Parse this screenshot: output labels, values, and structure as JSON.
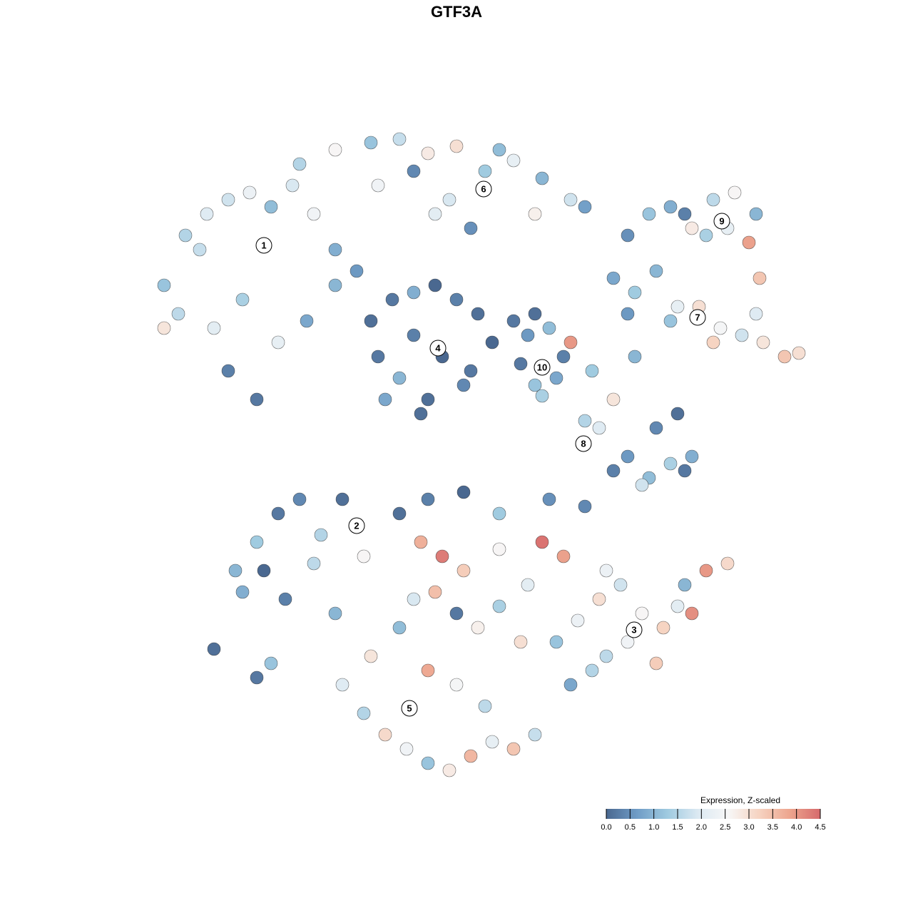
{
  "chart_data": {
    "type": "scatter",
    "title": "GTF3A",
    "xlim": [
      200,
      1130
    ],
    "ylim": [
      1095,
      180
    ],
    "colorbar": {
      "title": "Expression, Z-scaled",
      "clim": [
        0,
        4.5
      ],
      "ticks": [
        {
          "value": 0,
          "label": "0.0"
        },
        0.5,
        {
          "value": 1,
          "label": "1.0"
        },
        1.5,
        {
          "value": 2,
          "label": "2.0"
        },
        2.5,
        {
          "value": 3,
          "label": "3.0"
        },
        3.5,
        {
          "value": 4,
          "label": "4.0"
        },
        4.5
      ],
      "colors": [
        "#4a6890",
        "#6f9cc6",
        "#9fcae0",
        "#dce9f2",
        "#f7f7f7",
        "#f6d3c1",
        "#eda58e",
        "#d66a6c"
      ]
    },
    "series": [
      {
        "name": "1",
        "label_x": 370,
        "label_y": 344,
        "x": [
          230,
          260,
          290,
          320,
          350,
          380,
          410,
          440,
          470,
          500,
          250,
          300,
          340,
          390,
          430,
          470,
          320,
          360,
          280,
          230
        ],
        "y": [
          400,
          330,
          300,
          280,
          270,
          290,
          260,
          300,
          350,
          380,
          440,
          460,
          420,
          480,
          450,
          400,
          520,
          560,
          350,
          460
        ],
        "values": [
          1.2,
          1.5,
          2.0,
          1.8,
          2.3,
          1.1,
          1.9,
          2.4,
          0.9,
          0.6,
          1.6,
          2.1,
          1.4,
          2.2,
          0.8,
          1.0,
          0.3,
          0.2,
          1.7,
          2.9
        ]
      },
      {
        "name": "6",
        "label_x": 678,
        "label_y": 265,
        "x": [
          420,
          470,
          520,
          560,
          600,
          640,
          680,
          720,
          760,
          800,
          530,
          580,
          630,
          700,
          750,
          820,
          660,
          610
        ],
        "y": [
          230,
          210,
          200,
          195,
          215,
          205,
          240,
          225,
          250,
          280,
          260,
          240,
          280,
          210,
          300,
          290,
          320,
          300
        ],
        "values": [
          1.5,
          2.6,
          1.2,
          1.7,
          2.8,
          3.0,
          1.3,
          2.2,
          1.0,
          1.8,
          2.4,
          0.4,
          1.9,
          1.1,
          2.7,
          0.7,
          0.5,
          2.1
        ]
      },
      {
        "name": "4",
        "label_x": 614,
        "label_y": 488,
        "x": [
          520,
          550,
          580,
          610,
          640,
          670,
          530,
          560,
          600,
          650,
          690,
          720,
          750,
          540,
          580,
          620,
          660,
          590
        ],
        "y": [
          450,
          420,
          410,
          400,
          420,
          440,
          500,
          530,
          560,
          540,
          480,
          450,
          440,
          560,
          470,
          500,
          520,
          580
        ],
        "values": [
          0.1,
          0.2,
          0.9,
          0.0,
          0.3,
          0.1,
          0.2,
          1.0,
          0.1,
          0.4,
          0.0,
          0.2,
          0.1,
          0.8,
          0.3,
          0.0,
          0.2,
          0.1
        ]
      },
      {
        "name": "9",
        "label_x": 1012,
        "label_y": 310,
        "x": [
          880,
          910,
          940,
          970,
          1000,
          1030,
          1060,
          1050,
          990,
          960,
          1020,
          1065
        ],
        "y": [
          330,
          300,
          290,
          320,
          280,
          270,
          300,
          340,
          330,
          300,
          320,
          390
        ],
        "values": [
          0.5,
          1.2,
          0.9,
          2.8,
          1.6,
          2.6,
          1.0,
          3.9,
          1.4,
          0.3,
          2.2,
          3.4
        ]
      },
      {
        "name": "7",
        "label_x": 978,
        "label_y": 445,
        "x": [
          860,
          890,
          920,
          950,
          980,
          1010,
          1040,
          1070,
          1100,
          1120,
          1000,
          940,
          1060,
          880
        ],
        "y": [
          390,
          410,
          380,
          430,
          430,
          460,
          470,
          480,
          500,
          495,
          480,
          450,
          440,
          440
        ],
        "values": [
          0.8,
          1.3,
          1.0,
          2.2,
          3.0,
          2.5,
          1.8,
          2.9,
          3.4,
          3.0,
          3.2,
          1.2,
          2.0,
          0.6
        ]
      },
      {
        "name": "10",
        "label_x": 760,
        "label_y": 515,
        "x": [
          740,
          770,
          790,
          750,
          780,
          760,
          800,
          730
        ],
        "y": [
          470,
          460,
          500,
          540,
          530,
          555,
          480,
          510
        ],
        "values": [
          0.6,
          1.1,
          0.3,
          1.2,
          0.8,
          1.4,
          4.0,
          0.2
        ]
      },
      {
        "name": "8",
        "label_x": 818,
        "label_y": 622,
        "x": [
          830,
          860,
          890,
          920,
          950,
          970,
          840,
          880,
          910,
          940,
          960,
          820,
          860,
          900
        ],
        "y": [
          520,
          560,
          500,
          600,
          580,
          640,
          600,
          640,
          670,
          650,
          660,
          590,
          660,
          680
        ],
        "values": [
          1.3,
          2.9,
          1.0,
          0.4,
          0.1,
          0.9,
          2.0,
          0.6,
          1.1,
          1.4,
          0.2,
          1.5,
          0.3,
          1.8
        ]
      },
      {
        "name": "2",
        "label_x": 500,
        "label_y": 737,
        "x": [
          300,
          330,
          360,
          390,
          420,
          450,
          480,
          510,
          370,
          400,
          440,
          340,
          360,
          380,
          470
        ],
        "y": [
          910,
          800,
          760,
          720,
          700,
          750,
          700,
          780,
          800,
          840,
          790,
          830,
          950,
          930,
          860
        ],
        "values": [
          0.1,
          1.0,
          1.3,
          0.2,
          0.4,
          1.5,
          0.1,
          2.6,
          0.0,
          0.3,
          1.6,
          0.9,
          0.2,
          1.2,
          1.0
        ]
      },
      {
        "name": "3",
        "label_x": 889,
        "label_y": 883,
        "x": [
          780,
          810,
          840,
          870,
          900,
          930,
          960,
          990,
          1020,
          850,
          880,
          920,
          950,
          800,
          830,
          970
        ],
        "y": [
          900,
          870,
          840,
          820,
          860,
          880,
          820,
          800,
          790,
          920,
          900,
          930,
          850,
          960,
          940,
          860
        ],
        "values": [
          1.2,
          2.3,
          3.0,
          1.8,
          2.6,
          3.2,
          1.0,
          4.0,
          3.1,
          1.6,
          2.4,
          3.3,
          2.1,
          0.8,
          1.5,
          4.1
        ]
      },
      {
        "name": "5",
        "label_x": 574,
        "label_y": 993,
        "x": [
          480,
          510,
          540,
          570,
          600,
          630,
          660,
          690,
          720,
          750,
          520,
          560,
          600,
          640,
          680,
          590,
          620,
          650,
          700,
          740,
          580,
          610,
          640,
          670,
          700,
          730,
          760,
          790,
          560,
          600,
          650,
          700,
          770,
          820,
          850
        ],
        "y": [
          960,
          1000,
          1030,
          1050,
          1070,
          1080,
          1060,
          1040,
          1050,
          1030,
          920,
          880,
          940,
          960,
          990,
          760,
          780,
          800,
          770,
          820,
          840,
          830,
          860,
          880,
          850,
          900,
          760,
          780,
          720,
          700,
          690,
          720,
          700,
          710,
          800
        ],
        "values": [
          2.0,
          1.5,
          3.1,
          2.4,
          1.2,
          2.8,
          3.6,
          2.2,
          3.4,
          1.7,
          2.9,
          1.1,
          3.8,
          2.5,
          1.6,
          3.7,
          4.3,
          3.3,
          2.6,
          2.1,
          1.9,
          3.5,
          0.2,
          2.7,
          1.4,
          3.0,
          4.4,
          3.9,
          0.1,
          0.3,
          0.0,
          1.3,
          0.5,
          0.4,
          2.3
        ]
      }
    ]
  }
}
